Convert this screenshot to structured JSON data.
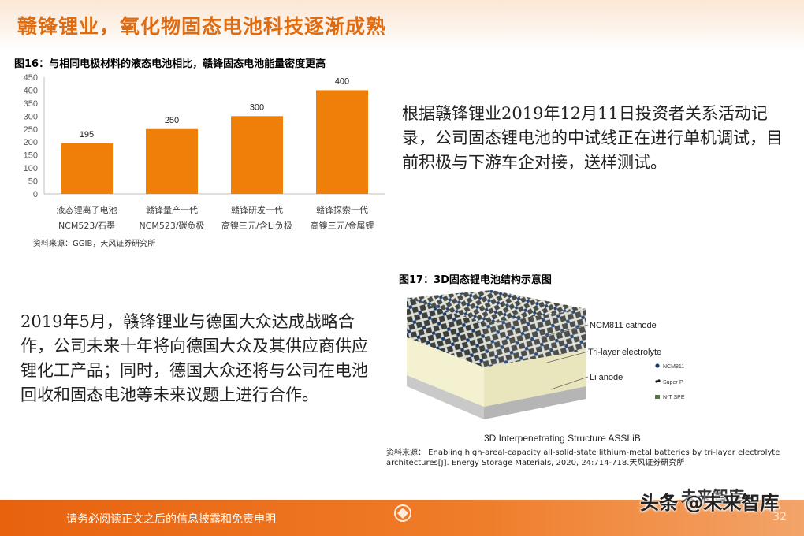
{
  "header": {
    "title": "赣锋锂业，氧化物固态电池科技逐渐成熟"
  },
  "figure16": {
    "caption": "图16：与相同电极材料的液态电池相比，赣锋固态电池能量密度更高",
    "source": "资料来源：GGIB，天风证券研究所"
  },
  "chart_data": {
    "type": "bar",
    "categories": [
      [
        "液态锂离子电池",
        "NCM523/石墨"
      ],
      [
        "赣锋量产一代",
        "NCM523/碳负极"
      ],
      [
        "赣锋研发一代",
        "高镍三元/含Li负极"
      ],
      [
        "赣锋探索一代",
        "高镍三元/金属锂"
      ]
    ],
    "values": [
      195,
      250,
      300,
      400
    ],
    "data_labels": [
      "195",
      "250",
      "300",
      "400"
    ],
    "yticks": [
      "0",
      "50",
      "100",
      "150",
      "200",
      "250",
      "300",
      "350",
      "400",
      "450"
    ],
    "ylim": [
      0,
      450
    ],
    "grid": false,
    "bar_color": "#f07f09"
  },
  "paragraph1": "根据赣锋锂业2019年12月11日投资者关系活动记录，公司固态锂电池的中试线正在进行单机调试，目前积极与下游车企对接，送样测试。",
  "paragraph2": "2019年5月，赣锋锂业与德国大众达成战略合作，公司未来十年将向德国大众及其供应商供应锂化工产品；同时，德国大众还将与公司在电池回收和固态电池等未来议题上进行合作。",
  "figure17": {
    "caption": "图17：3D固态锂电池结构示意图",
    "labels": {
      "cathode": "NCM811 cathode",
      "electrolyte": "Tri-layer electrolyte",
      "anode": "Li anode",
      "title": "3D Interpenetrating Structure ASSLiB"
    },
    "legend": [
      "NCM811",
      "Super-P",
      "N-T SPE"
    ],
    "source": "资料来源： Enabling high-areal-capacity all-solid-state lithium-metal batteries by tri-layer electrolyte architectures[J]. Energy Storage Materials, 2020, 24:714-718.天风证券研究所"
  },
  "footer": {
    "disclaimer": "请务必阅读正文之后的信息披露和免责申明",
    "page": "32",
    "watermark": "头条 @未来智库",
    "watermark_logo": "未来智库"
  },
  "colors": {
    "accent": "#e06c12",
    "bar": "#f07f09",
    "footer": "#e8620e"
  }
}
